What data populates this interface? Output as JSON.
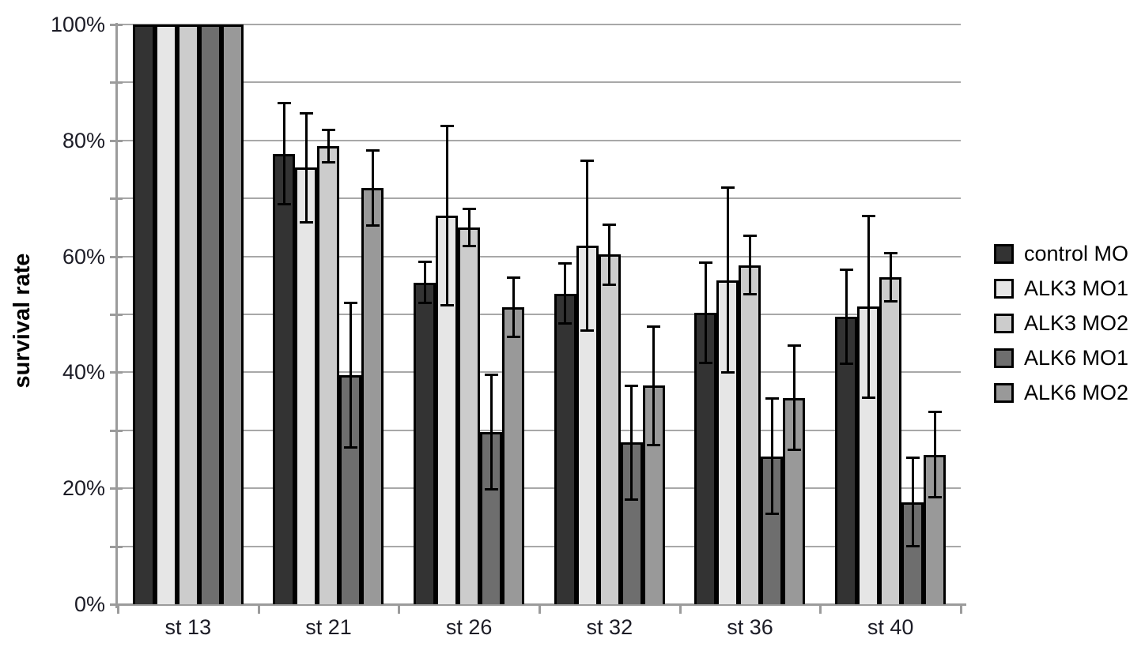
{
  "chart_data": {
    "type": "bar",
    "title": "",
    "xlabel": "",
    "ylabel": "survival rate",
    "ylim": [
      0,
      100
    ],
    "grid": true,
    "grid_step_percent": 10,
    "legend_position": "right",
    "categories": [
      "st 13",
      "st 21",
      "st 26",
      "st 32",
      "st 36",
      "st 40"
    ],
    "ytick_labels": [
      "0%",
      "20%",
      "40%",
      "60%",
      "80%",
      "100%"
    ],
    "ytick_values": [
      0,
      20,
      40,
      60,
      80,
      100
    ],
    "series": [
      {
        "name": "control MO",
        "color": "#333333",
        "values": [
          100,
          77.7,
          55.5,
          53.6,
          50.3,
          49.6
        ],
        "errors": [
          0,
          8.8,
          3.6,
          5.2,
          8.7,
          8.2
        ]
      },
      {
        "name": "ALK3 MO1",
        "color": "#e6e6e6",
        "values": [
          100,
          75.3,
          67.0,
          61.8,
          55.9,
          51.3
        ],
        "errors": [
          0,
          9.5,
          15.5,
          14.7,
          16.0,
          15.7
        ]
      },
      {
        "name": "ALK3 MO2",
        "color": "#cccccc",
        "values": [
          100,
          79.0,
          65.0,
          60.3,
          58.5,
          56.4
        ],
        "errors": [
          0,
          2.9,
          3.3,
          5.2,
          5.1,
          4.2
        ]
      },
      {
        "name": "ALK6 MO1",
        "color": "#6e6e6e",
        "values": [
          100,
          39.5,
          29.7,
          27.9,
          25.5,
          17.6
        ],
        "errors": [
          0,
          12.5,
          10.0,
          9.9,
          10.0,
          7.7
        ]
      },
      {
        "name": "ALK6 MO2",
        "color": "#999999",
        "values": [
          100,
          71.8,
          51.2,
          37.7,
          35.6,
          25.8
        ],
        "errors": [
          0,
          6.5,
          5.2,
          10.3,
          9.1,
          7.4
        ]
      }
    ],
    "colors": {
      "grid": "#a8a8a8",
      "axis": "#9b9b9b",
      "tick_label": "#1c1c26",
      "bar_border": "#000000",
      "error_bar": "#000000"
    }
  }
}
